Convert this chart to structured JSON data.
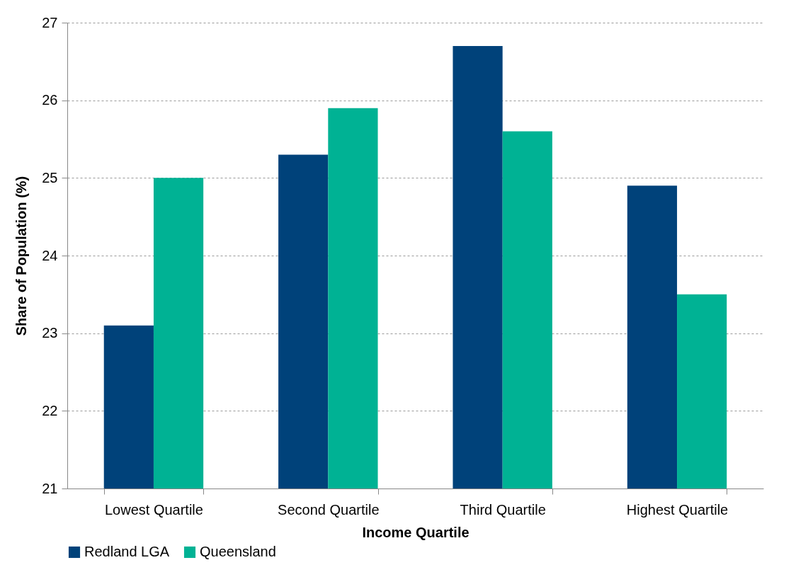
{
  "chart_data": {
    "type": "bar",
    "xlabel": "Income Quartile",
    "ylabel": "Share of Population (%)",
    "categories": [
      "Lowest Quartile",
      "Second Quartile",
      "Third Quartile",
      "Highest Quartile"
    ],
    "series": [
      {
        "name": "Redland LGA",
        "color": "#00427a",
        "values": [
          23.1,
          25.3,
          26.7,
          24.9
        ]
      },
      {
        "name": "Queensland",
        "color": "#00b294",
        "values": [
          25.0,
          25.9,
          25.6,
          23.5
        ]
      }
    ],
    "ylim": [
      21,
      27
    ],
    "yticks": [
      21,
      22,
      23,
      24,
      25,
      26,
      27
    ],
    "grid": "y",
    "legend": "bottom"
  }
}
